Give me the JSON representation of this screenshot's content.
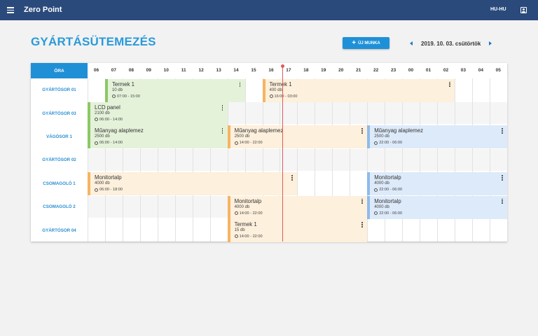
{
  "app": {
    "title": "Zero Point",
    "locale": "HU-HU",
    "menu_icon": "menu-icon",
    "account_icon": "account-box-icon"
  },
  "page": {
    "title": "GYÁRTÁSÜTEMEZÉS",
    "new_job_label": "ÚJ MUNKA",
    "date": "2019. 10. 03. csütörtök"
  },
  "schedule": {
    "hour_header": "ÓRA",
    "hours": [
      "06",
      "07",
      "08",
      "09",
      "10",
      "11",
      "12",
      "13",
      "14",
      "15",
      "16",
      "17",
      "18",
      "19",
      "20",
      "21",
      "22",
      "23",
      "00",
      "01",
      "02",
      "03",
      "04",
      "05"
    ],
    "start_hour": 6,
    "current_time": "17:00",
    "rows": [
      {
        "label": "GYÁRTÓSOR 01",
        "jobs": [
          {
            "name": "Termek 1",
            "qty": "10 db",
            "time": "07:00 - 15:00",
            "color": "green",
            "start": 1,
            "end": 9
          },
          {
            "name": "Termek 1",
            "qty": "400 db",
            "time": "16:00 - 03:00",
            "color": "orange",
            "start": 10,
            "end": 21
          }
        ]
      },
      {
        "label": "GYÁRTÓSOR 03",
        "jobs": [
          {
            "name": "LCD panel",
            "qty": "2100 db",
            "time": "06:00 - 14:00",
            "color": "green",
            "start": 0,
            "end": 8
          }
        ]
      },
      {
        "label": "VÁGÓSOR 1",
        "jobs": [
          {
            "name": "Műanyag alaplemez",
            "qty": "2500 db",
            "time": "06:00 - 14:00",
            "color": "green",
            "start": 0,
            "end": 8
          },
          {
            "name": "Műanyag alaplemez",
            "qty": "2500 db",
            "time": "14:00 - 22:00",
            "color": "orange",
            "start": 8,
            "end": 16
          },
          {
            "name": "Műanyag alaplemez",
            "qty": "2500 db",
            "time": "22:00 - 06:00",
            "color": "blue",
            "start": 16,
            "end": 24
          }
        ]
      },
      {
        "label": "GYÁRTÓSOR 02",
        "jobs": []
      },
      {
        "label": "CSOMAGOLÓ 1",
        "jobs": [
          {
            "name": "Monitortalp",
            "qty": "4000 db",
            "time": "06:00 - 18:00",
            "color": "orange",
            "start": 0,
            "end": 12
          },
          {
            "name": "Monitortalp",
            "qty": "4000 db",
            "time": "22:00 - 06:00",
            "color": "blue",
            "start": 16,
            "end": 24
          }
        ]
      },
      {
        "label": "CSOMAGOLÓ 2",
        "jobs": [
          {
            "name": "Monitortalp",
            "qty": "4000 db",
            "time": "14:00 - 22:00",
            "color": "orange",
            "start": 8,
            "end": 16
          },
          {
            "name": "Monitortalp",
            "qty": "4000 db",
            "time": "22:00 - 06:00",
            "color": "blue",
            "start": 16,
            "end": 24
          }
        ]
      },
      {
        "label": "GYÁRTÓSOR 04",
        "jobs": [
          {
            "name": "Termek 1",
            "qty": "15 db",
            "time": "14:00 - 22:00",
            "color": "orange",
            "start": 8,
            "end": 16
          }
        ]
      }
    ]
  }
}
